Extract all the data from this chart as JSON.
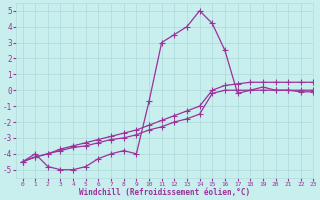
{
  "xlabel": "Windchill (Refroidissement éolien,°C)",
  "xlim": [
    -0.5,
    23
  ],
  "ylim": [
    -5.5,
    5.5
  ],
  "xticks": [
    0,
    1,
    2,
    3,
    4,
    5,
    6,
    7,
    8,
    9,
    10,
    11,
    12,
    13,
    14,
    15,
    16,
    17,
    18,
    19,
    20,
    21,
    22,
    23
  ],
  "yticks": [
    -5,
    -4,
    -3,
    -2,
    -1,
    0,
    1,
    2,
    3,
    4,
    5
  ],
  "background_color": "#c8eeee",
  "grid_color": "#b0dddd",
  "line_color": "#993399",
  "line1_x": [
    0,
    1,
    2,
    3,
    4,
    5,
    6,
    7,
    8,
    9,
    10,
    11,
    12,
    13,
    14,
    15,
    16,
    17,
    18,
    19,
    20,
    21,
    22,
    23
  ],
  "line1_y": [
    -4.5,
    -4.2,
    -4.0,
    -3.8,
    -3.6,
    -3.5,
    -3.3,
    -3.1,
    -3.0,
    -2.8,
    -2.5,
    -2.3,
    -2.0,
    -1.8,
    -1.5,
    -0.2,
    0.0,
    0.0,
    0.0,
    0.0,
    0.0,
    0.0,
    0.0,
    0.0
  ],
  "line2_x": [
    0,
    1,
    2,
    3,
    4,
    5,
    6,
    7,
    8,
    9,
    10,
    11,
    12,
    13,
    14,
    15,
    16,
    17,
    18,
    19,
    20,
    21,
    22,
    23
  ],
  "line2_y": [
    -4.5,
    -4.2,
    -4.0,
    -3.7,
    -3.5,
    -3.3,
    -3.1,
    -2.9,
    -2.7,
    -2.5,
    -2.2,
    -1.9,
    -1.6,
    -1.3,
    -1.0,
    0.0,
    0.3,
    0.4,
    0.5,
    0.5,
    0.5,
    0.5,
    0.5,
    0.5
  ],
  "line3_x": [
    0,
    1,
    2,
    3,
    4,
    5,
    6,
    7,
    8,
    9,
    10,
    11,
    12,
    13,
    14,
    15,
    16,
    17,
    18,
    19,
    20,
    21,
    22,
    23
  ],
  "line3_y": [
    -4.5,
    -4.0,
    -4.8,
    -5.0,
    -5.0,
    -4.8,
    -4.3,
    -4.0,
    -3.8,
    -4.0,
    -0.7,
    3.0,
    3.5,
    4.0,
    5.0,
    4.2,
    2.5,
    -0.2,
    0.0,
    0.2,
    0.0,
    0.0,
    -0.1,
    -0.1
  ],
  "marker": "+",
  "marker_size": 4,
  "lw": 0.9,
  "tick_fontsize": 5.5,
  "xtick_fontsize": 4.5,
  "xlabel_fontsize": 5.5
}
